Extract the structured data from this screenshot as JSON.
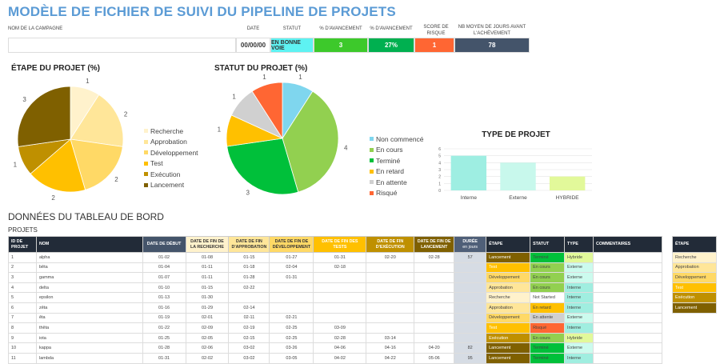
{
  "title": "MODÈLE DE FICHIER DE SUIVI DU PIPELINE DE PROJETS",
  "summary": {
    "labels": {
      "campaign": "NOM DE LA CAMPAGNE",
      "date": "DATE",
      "status": "STATUT",
      "progress1": "% D'AVANCEMENT",
      "progress2": "% D'AVANCEMENT",
      "risk": "SCORE DE RISQUE",
      "avg_days": "NB MOYEN DE JOURS AVANT L'ACHÈVEMENT"
    },
    "values": {
      "campaign": "",
      "date": "00/00/00",
      "status": "EN BONNE VOIE",
      "progress1": "3",
      "progress2": "27%",
      "risk": "1",
      "avg_days": "78"
    },
    "colors": {
      "status": "#5EF2F2",
      "progress1": "#3DC92B",
      "progress2": "#00B050",
      "risk": "#FF6633",
      "avg_days": "#44546A"
    }
  },
  "chart_data": [
    {
      "type": "pie",
      "title": "ÉTAPE DU PROJET (%)",
      "categories": [
        "Recherche",
        "Approbation",
        "Développement",
        "Test",
        "Exécution",
        "Lancement"
      ],
      "values": [
        1,
        2,
        2,
        2,
        1,
        3
      ],
      "colors": [
        "#FFF2CC",
        "#FFE699",
        "#FFD966",
        "#FFC000",
        "#BF9000",
        "#7F6000"
      ],
      "legend": "right"
    },
    {
      "type": "pie",
      "title": "STATUT DU PROJET (%)",
      "categories": [
        "Non commencé",
        "En cours",
        "Terminé",
        "En retard",
        "En attente",
        "Risqué"
      ],
      "values": [
        1,
        4,
        3,
        1,
        1,
        1
      ],
      "colors": [
        "#7FD6EE",
        "#92D050",
        "#00C03A",
        "#FFC000",
        "#D0D0D0",
        "#FF6633"
      ],
      "legend": "right"
    },
    {
      "type": "bar",
      "title": "TYPE DE PROJET",
      "categories": [
        "Interne",
        "Externe",
        "HYBRIDE"
      ],
      "values": [
        5,
        4,
        2
      ],
      "colors": [
        "#9EEEE2",
        "#C8F8EC",
        "#E2F99A"
      ],
      "ylim": [
        0,
        6
      ],
      "yticks": [
        "0",
        "1",
        "2",
        "3",
        "4",
        "5",
        "6"
      ],
      "grid": true
    }
  ],
  "dashboard": {
    "title": "DONNÉES DU TABLEAU DE BORD",
    "subtitle": "PROJETS"
  },
  "table": {
    "headers": [
      "ID DE PROJET",
      "NOM",
      "DATE DE DÉBUT",
      "DATE DE FIN DE LA RECHERCHE",
      "DATE DE FIN D'APPROBATION",
      "DATE DE FIN DE DÉVELOPPEMENT",
      "DATE DE FIN DES TESTS",
      "DATE DE FIN D'EXÉCUTION",
      "DATE DE FIN  DE LANCEMENT",
      "DURÉE",
      "ÉTAPE",
      "STATUT",
      "TYPE",
      "COMMENTAIRES"
    ],
    "duration_unit": "en jours",
    "rows": [
      [
        "1",
        "alpha",
        "01-02",
        "01-08",
        "01-15",
        "01-27",
        "01-31",
        "02-20",
        "02-28",
        "57",
        "Lancement",
        "Terminé",
        "Hybride",
        ""
      ],
      [
        "2",
        "bêta",
        "01-04",
        "01-11",
        "01-18",
        "02-04",
        "02-18",
        "",
        "",
        "",
        "Test",
        "En cours",
        "Externe",
        ""
      ],
      [
        "3",
        "gamma",
        "01-07",
        "01-11",
        "01-28",
        "01-31",
        "",
        "",
        "",
        "",
        "Développement",
        "En cours",
        "Externe",
        ""
      ],
      [
        "4",
        "delta",
        "01-10",
        "01-15",
        "02-22",
        "",
        "",
        "",
        "",
        "",
        "Approbation",
        "En cours",
        "Interne",
        ""
      ],
      [
        "5",
        "epsilon",
        "01-13",
        "01-30",
        "",
        "",
        "",
        "",
        "",
        "",
        "Recherche",
        "Not Started",
        "Interne",
        ""
      ],
      [
        "6",
        "zêta",
        "01-16",
        "01-29",
        "02-14",
        "",
        "",
        "",
        "",
        "",
        "Approbation",
        "En retard",
        "Interne",
        ""
      ],
      [
        "7",
        "êta",
        "01-19",
        "02-01",
        "02-11",
        "02-21",
        "",
        "",
        "",
        "",
        "Développement",
        "En attente",
        "Externe",
        ""
      ],
      [
        "8",
        "thêta",
        "01-22",
        "02-09",
        "02-19",
        "02-25",
        "03-09",
        "",
        "",
        "",
        "Test",
        "Risqué",
        "Interne",
        ""
      ],
      [
        "9",
        "iota",
        "01-25",
        "02-05",
        "02-15",
        "02-25",
        "02-28",
        "03-14",
        "",
        "",
        "Exécution",
        "En cours",
        "Hybride",
        ""
      ],
      [
        "10",
        "kappa",
        "01-28",
        "02-06",
        "03-02",
        "03-26",
        "04-06",
        "04-16",
        "04-20",
        "82",
        "Lancement",
        "Terminé",
        "Externe",
        ""
      ],
      [
        "11",
        "lambda",
        "01-31",
        "02-02",
        "03-02",
        "03-05",
        "04-02",
        "04-22",
        "05-06",
        "95",
        "Lancement",
        "Terminé",
        "Interne",
        ""
      ]
    ]
  },
  "stage_legend": {
    "header": "ÉTAPE",
    "items": [
      "Recherche",
      "Approbation",
      "Développement",
      "Test",
      "Exécution",
      "Lancement"
    ]
  },
  "stage_colors": {
    "Recherche": "#FFF2CC",
    "Approbation": "#FFE699",
    "Développement": "#FFD966",
    "Test": "#FFC000",
    "Exécution": "#BF9000",
    "Lancement": "#7F6000"
  },
  "status_colors": {
    "Terminé": "#00C03A",
    "En cours": "#92D050",
    "Not Started": "#FFFFFF",
    "En retard": "#FFC000",
    "En attente": "#D0D0D0",
    "Risqué": "#FF6633"
  },
  "type_colors": {
    "Hybride": "#E2F99A",
    "Externe": "#CCFBEE",
    "Interne": "#A0EEE0"
  }
}
